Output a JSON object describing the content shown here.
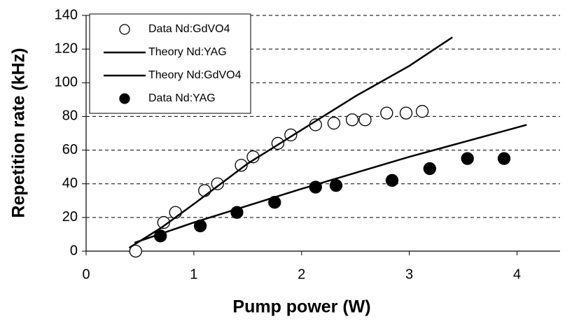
{
  "chart_data": {
    "type": "scatter",
    "x_label": "Pump power (W)",
    "y_label": "Repetition rate (kHz)",
    "xlim": [
      0,
      4.4
    ],
    "xticks": [
      0,
      1,
      2,
      3,
      4
    ],
    "ylim": [
      0,
      140
    ],
    "yticks": [
      0,
      20,
      40,
      60,
      80,
      100,
      120,
      140
    ],
    "grid": true,
    "legend": "upper left",
    "series": [
      {
        "name": "Data Nd:GdVO4",
        "type": "scatter",
        "marker": "open",
        "color": "#000000",
        "x": [
          0.46,
          0.72,
          0.83,
          1.1,
          1.22,
          1.44,
          1.55,
          1.78,
          1.9,
          2.13,
          2.3,
          2.47,
          2.59,
          2.79,
          2.97,
          3.12
        ],
        "values": [
          0,
          17,
          23,
          36,
          40,
          51,
          56,
          64,
          69,
          75,
          76,
          78,
          78,
          82,
          82,
          83
        ]
      },
      {
        "name": "Theory Nd:YAG",
        "type": "line",
        "color": "#000000",
        "x": [
          0.45,
          1,
          2,
          3,
          4.09
        ],
        "values": [
          5,
          17,
          37,
          56,
          75
        ]
      },
      {
        "name": "Theory Nd:GdVO4",
        "type": "line",
        "color": "#000000",
        "x": [
          0.4,
          0.7,
          1,
          1.5,
          2,
          2.5,
          3,
          3.4
        ],
        "values": [
          2,
          14,
          28,
          52,
          72,
          92,
          110,
          127
        ]
      },
      {
        "name": "Data Nd:YAG",
        "type": "scatter",
        "marker": "filled",
        "color": "#000000",
        "x": [
          0.69,
          1.06,
          1.4,
          1.75,
          2.13,
          2.32,
          2.84,
          3.19,
          3.54,
          3.88
        ],
        "values": [
          9,
          15,
          23,
          29,
          38,
          39,
          42,
          49,
          55,
          55
        ]
      }
    ]
  }
}
